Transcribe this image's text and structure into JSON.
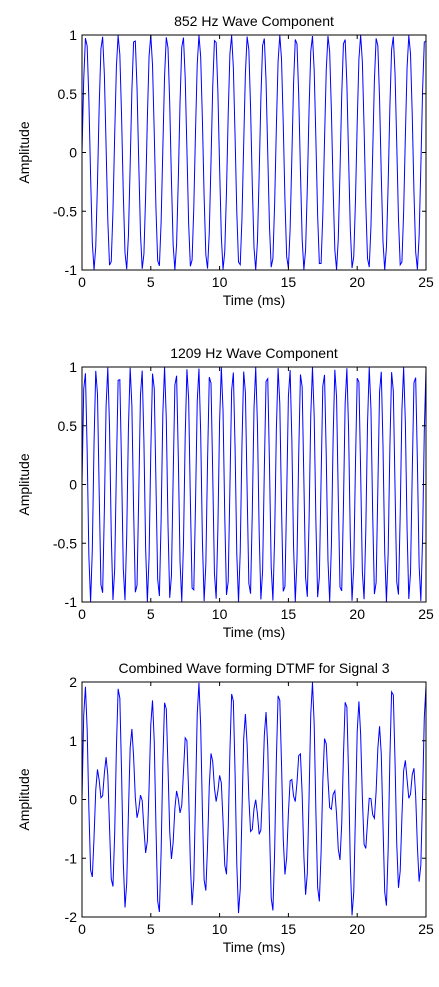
{
  "chart_data": [
    {
      "type": "line",
      "title": "852 Hz Wave Component",
      "xlabel": "Time (ms)",
      "ylabel": "Amplitude",
      "xlim": [
        0,
        25
      ],
      "ylim": [
        -1,
        1
      ],
      "xticks": [
        0,
        5,
        10,
        15,
        20,
        25
      ],
      "yticks": [
        -1,
        -0.5,
        0,
        0.5,
        1
      ],
      "xtick_labels": [
        "0",
        "5",
        "10",
        "15",
        "20",
        "25"
      ],
      "ytick_labels": [
        "-1",
        "-0.5",
        "0",
        "0.5",
        "1"
      ],
      "grid": false,
      "sample_rate_hz": 8000,
      "series": [
        {
          "components": [
            {
              "freq_hz": 852,
              "amplitude": 1
            }
          ],
          "color": "#0000ff"
        }
      ]
    },
    {
      "type": "line",
      "title": "1209 Hz Wave Component",
      "xlabel": "Time (ms)",
      "ylabel": "Amplitude",
      "xlim": [
        0,
        25
      ],
      "ylim": [
        -1,
        1
      ],
      "xticks": [
        0,
        5,
        10,
        15,
        20,
        25
      ],
      "yticks": [
        -1,
        -0.5,
        0,
        0.5,
        1
      ],
      "xtick_labels": [
        "0",
        "5",
        "10",
        "15",
        "20",
        "25"
      ],
      "ytick_labels": [
        "-1",
        "-0.5",
        "0",
        "0.5",
        "1"
      ],
      "grid": false,
      "sample_rate_hz": 8000,
      "series": [
        {
          "components": [
            {
              "freq_hz": 1209,
              "amplitude": 1
            }
          ],
          "color": "#0000ff"
        }
      ]
    },
    {
      "type": "line",
      "title": "Combined Wave forming DTMF for Signal 3",
      "xlabel": "Time (ms)",
      "ylabel": "Amplitude",
      "xlim": [
        0,
        25
      ],
      "ylim": [
        -2,
        2
      ],
      "xticks": [
        0,
        5,
        10,
        15,
        20,
        25
      ],
      "yticks": [
        -2,
        -1,
        0,
        1,
        2
      ],
      "xtick_labels": [
        "0",
        "5",
        "10",
        "15",
        "20",
        "25"
      ],
      "ytick_labels": [
        "-2",
        "-1",
        "0",
        "1",
        "2"
      ],
      "grid": false,
      "sample_rate_hz": 8000,
      "series": [
        {
          "components": [
            {
              "freq_hz": 852,
              "amplitude": 1
            },
            {
              "freq_hz": 1209,
              "amplitude": 1
            }
          ],
          "color": "#0000ff"
        }
      ]
    }
  ]
}
